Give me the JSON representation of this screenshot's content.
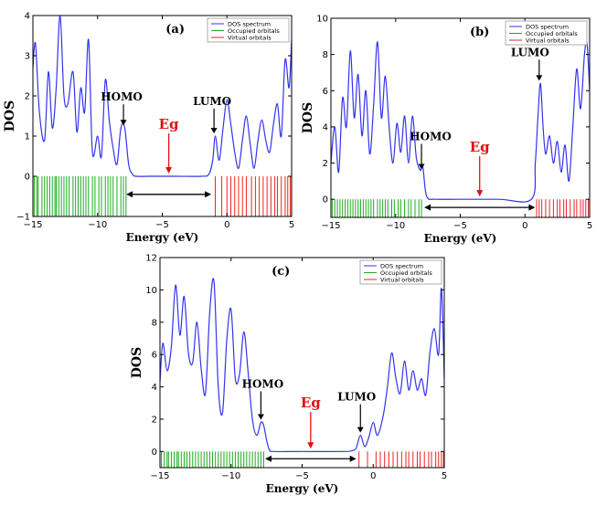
{
  "chart_data": [
    {
      "id": "a",
      "type": "line",
      "panel_label": "(a)",
      "xlabel": "Energy (eV)",
      "ylabel": "DOS",
      "xlim": [
        -15,
        5
      ],
      "ylim": [
        -1,
        4
      ],
      "xticks": [
        -15,
        -10,
        -5,
        0,
        5
      ],
      "xtick_labels": [
        "−15",
        "−10",
        "−5",
        "0",
        "5"
      ],
      "yticks": [
        -1,
        0,
        1,
        2,
        3,
        4
      ],
      "ytick_labels": [
        "−1",
        "0",
        "1",
        "2",
        "3",
        "4"
      ],
      "legend": [
        "DOS spectrum",
        "Occupied orbitals",
        "Virtual orbitals"
      ],
      "legend_position": "top-right",
      "series": [
        {
          "name": "DOS spectrum",
          "color": "#3333ee",
          "x": [
            -15,
            -14.8,
            -14.5,
            -14.1,
            -13.8,
            -13.5,
            -13.2,
            -12.9,
            -12.6,
            -12.3,
            -11.9,
            -11.6,
            -11.3,
            -11.0,
            -10.7,
            -10.4,
            -10.0,
            -9.7,
            -9.4,
            -9.1,
            -8.8,
            -8.5,
            -8.2,
            -7.9,
            -7.6,
            -7.3,
            -7.0,
            -6.0,
            -4.0,
            -2.0,
            -1.4,
            -1.1,
            -0.9,
            -0.6,
            -0.3,
            0.0,
            0.3,
            0.6,
            0.9,
            1.2,
            1.5,
            1.8,
            2.1,
            2.4,
            2.7,
            3.0,
            3.3,
            3.6,
            3.9,
            4.2,
            4.5,
            4.8,
            5.0
          ],
          "values": [
            2.7,
            3.3,
            1.6,
            0.9,
            2.6,
            1.2,
            2.2,
            4.0,
            2.0,
            1.8,
            2.6,
            1.1,
            2.2,
            1.6,
            3.4,
            0.6,
            1.0,
            0.5,
            2.4,
            1.4,
            0.7,
            0.3,
            1.2,
            1.2,
            0.3,
            0.05,
            0.0,
            0.0,
            0.0,
            0.0,
            0.05,
            0.4,
            1.0,
            0.4,
            1.2,
            1.9,
            1.3,
            0.6,
            0.2,
            0.9,
            1.5,
            0.8,
            0.2,
            0.9,
            1.4,
            0.9,
            0.6,
            1.3,
            1.8,
            1.0,
            2.9,
            2.2,
            3.4
          ]
        }
      ],
      "occupied_orbitals": [
        -14.9,
        -14.7,
        -14.6,
        -14.3,
        -14.1,
        -13.9,
        -13.7,
        -13.5,
        -13.3,
        -13.2,
        -13.0,
        -12.8,
        -12.6,
        -12.4,
        -12.2,
        -11.9,
        -11.7,
        -11.5,
        -11.3,
        -11.1,
        -10.9,
        -10.7,
        -10.4,
        -10.2,
        -9.9,
        -9.7,
        -9.4,
        -9.2,
        -9.0,
        -8.8,
        -8.5,
        -8.2,
        -8.0,
        -7.8
      ],
      "virtual_orbitals": [
        -0.9,
        -0.4,
        0.0,
        0.3,
        0.6,
        0.9,
        1.2,
        1.5,
        1.9,
        2.2,
        2.5,
        2.8,
        3.1,
        3.4,
        3.7,
        3.9,
        4.2,
        4.5,
        4.7,
        4.9
      ],
      "annotations": [
        {
          "text": "HOMO",
          "x": -8.0,
          "y": 1.2
        },
        {
          "text": "LUMO",
          "x": -1.0,
          "y": 1.0
        }
      ],
      "gap": {
        "text": "Eg",
        "x_from": -8.0,
        "x_to": -1.0
      }
    },
    {
      "id": "b",
      "type": "line",
      "panel_label": "(b)",
      "xlabel": "Energy (eV)",
      "ylabel": "DOS",
      "xlim": [
        -15,
        5
      ],
      "ylim": [
        -1,
        10
      ],
      "xticks": [
        -15,
        -10,
        -5,
        0,
        5
      ],
      "xtick_labels": [
        "−15",
        "−10",
        "−5",
        "0",
        "5"
      ],
      "yticks": [
        0,
        2,
        4,
        6,
        8,
        10
      ],
      "ytick_labels": [
        "0",
        "2",
        "4",
        "6",
        "8",
        "10"
      ],
      "legend": [
        "DOS spectrum",
        "Occupied orbitals",
        "Virtual orbitals"
      ],
      "legend_position": "top-right",
      "series": [
        {
          "name": "DOS spectrum",
          "color": "#3333ee",
          "x": [
            -15,
            -14.7,
            -14.4,
            -14.1,
            -13.8,
            -13.5,
            -13.2,
            -12.9,
            -12.6,
            -12.3,
            -12.0,
            -11.7,
            -11.4,
            -11.1,
            -10.8,
            -10.5,
            -10.2,
            -9.9,
            -9.6,
            -9.3,
            -9.0,
            -8.7,
            -8.4,
            -8.1,
            -7.9,
            -7.7,
            -7.5,
            -7.0,
            -5.0,
            -2.0,
            0.5,
            0.8,
            1.0,
            1.2,
            1.4,
            1.6,
            1.9,
            2.2,
            2.5,
            2.8,
            3.1,
            3.4,
            3.7,
            4.0,
            4.3,
            4.6,
            4.8,
            5.0
          ],
          "values": [
            2.0,
            4.0,
            1.5,
            5.6,
            4.0,
            8.2,
            4.5,
            6.9,
            3.5,
            6.0,
            2.5,
            5.2,
            8.7,
            4.5,
            6.8,
            4.0,
            2.0,
            4.2,
            2.6,
            4.6,
            2.0,
            4.6,
            2.3,
            1.6,
            1.8,
            0.5,
            0.05,
            0.0,
            0.0,
            0.0,
            0.0,
            2.0,
            4.5,
            6.4,
            4.0,
            2.5,
            3.5,
            2.0,
            3.2,
            1.5,
            3.0,
            1.0,
            4.0,
            7.2,
            5.0,
            8.0,
            8.6,
            6.0
          ]
        }
      ],
      "occupied_orbitals": [
        -14.9,
        -14.7,
        -14.5,
        -14.3,
        -14.1,
        -13.9,
        -13.7,
        -13.5,
        -13.3,
        -13.1,
        -12.9,
        -12.7,
        -12.5,
        -12.3,
        -12.1,
        -11.9,
        -11.7,
        -11.4,
        -11.2,
        -11.0,
        -10.8,
        -10.6,
        -10.3,
        -10.1,
        -9.8,
        -9.6,
        -9.3,
        -9.0,
        -8.8,
        -8.5,
        -8.2,
        -8.0
      ],
      "virtual_orbitals": [
        0.9,
        1.1,
        1.3,
        1.6,
        1.9,
        2.2,
        2.5,
        2.7,
        3.0,
        3.2,
        3.5,
        3.8,
        4.0,
        4.3,
        4.5,
        4.7,
        4.9
      ],
      "annotations": [
        {
          "text": "HOMO",
          "x": -8.0,
          "y": 1.5
        },
        {
          "text": "LUMO",
          "x": 1.1,
          "y": 6.4
        }
      ],
      "gap": {
        "text": "Eg",
        "x_from": -8.0,
        "x_to": 1.0
      }
    },
    {
      "id": "c",
      "type": "line",
      "panel_label": "(c)",
      "xlabel": "Energy (eV)",
      "ylabel": "DOS",
      "xlim": [
        -15,
        5
      ],
      "ylim": [
        -1,
        12
      ],
      "xticks": [
        -15,
        -10,
        -5,
        0,
        5
      ],
      "xtick_labels": [
        "−15",
        "−10",
        "−5",
        "0",
        "5"
      ],
      "yticks": [
        0,
        2,
        4,
        6,
        8,
        10,
        12
      ],
      "ytick_labels": [
        "0",
        "2",
        "4",
        "6",
        "8",
        "10",
        "12"
      ],
      "legend": [
        "DOS spectrum",
        "Occupied orbitals",
        "Virtual orbitals"
      ],
      "legend_position": "top-right",
      "series": [
        {
          "name": "DOS spectrum",
          "color": "#3333ee",
          "x": [
            -15,
            -14.8,
            -14.5,
            -14.2,
            -13.9,
            -13.6,
            -13.3,
            -13.0,
            -12.7,
            -12.4,
            -12.1,
            -11.8,
            -11.5,
            -11.2,
            -10.9,
            -10.6,
            -10.3,
            -10.0,
            -9.7,
            -9.4,
            -9.1,
            -8.8,
            -8.5,
            -8.2,
            -7.9,
            -7.7,
            -7.5,
            -7.3,
            -7.0,
            -5.0,
            -2.0,
            -1.5,
            -1.2,
            -0.9,
            -0.6,
            -0.3,
            0.0,
            0.3,
            0.7,
            1.0,
            1.3,
            1.6,
            1.9,
            2.2,
            2.5,
            2.8,
            3.1,
            3.4,
            3.7,
            4.0,
            4.3,
            4.6,
            4.8,
            5.0
          ],
          "values": [
            4.3,
            6.7,
            5.0,
            6.5,
            10.3,
            7.2,
            9.6,
            6.1,
            5.5,
            8.0,
            5.1,
            3.6,
            8.6,
            10.5,
            4.0,
            2.4,
            6.9,
            8.8,
            4.5,
            4.8,
            7.4,
            4.9,
            2.0,
            1.0,
            1.8,
            1.6,
            0.7,
            0.1,
            0.0,
            0.0,
            0.0,
            0.05,
            0.2,
            1.0,
            0.3,
            0.9,
            1.8,
            1.0,
            2.2,
            4.0,
            6.1,
            4.5,
            3.6,
            5.6,
            3.8,
            5.0,
            3.8,
            4.5,
            3.5,
            6.2,
            7.6,
            6.0,
            10.1,
            4.5
          ]
        }
      ],
      "occupied_orbitals": [
        -14.9,
        -14.7,
        -14.5,
        -14.4,
        -14.2,
        -14.0,
        -13.8,
        -13.7,
        -13.5,
        -13.3,
        -13.1,
        -12.9,
        -12.7,
        -12.5,
        -12.3,
        -12.1,
        -11.9,
        -11.7,
        -11.5,
        -11.3,
        -11.1,
        -10.9,
        -10.7,
        -10.5,
        -10.3,
        -10.1,
        -9.9,
        -9.7,
        -9.5,
        -9.3,
        -9.1,
        -8.9,
        -8.7,
        -8.5,
        -8.3,
        -8.1,
        -7.9,
        -7.7
      ],
      "virtual_orbitals": [
        -1.0,
        -0.4,
        0.2,
        0.5,
        0.8,
        1.1,
        1.4,
        1.7,
        2.0,
        2.3,
        2.5,
        2.8,
        3.1,
        3.3,
        3.6,
        3.9,
        4.1,
        4.4,
        4.6,
        4.8,
        4.95
      ],
      "annotations": [
        {
          "text": "HOMO",
          "x": -7.9,
          "y": 1.8
        },
        {
          "text": "LUMO",
          "x": -0.9,
          "y": 1.0
        }
      ],
      "gap": {
        "text": "Eg",
        "x_from": -7.8,
        "x_to": -1.0
      }
    }
  ],
  "colors": {
    "dos": "#3333ee",
    "occupied": "#22aa22",
    "virtual": "#ee2222",
    "eg": "#e01010"
  }
}
